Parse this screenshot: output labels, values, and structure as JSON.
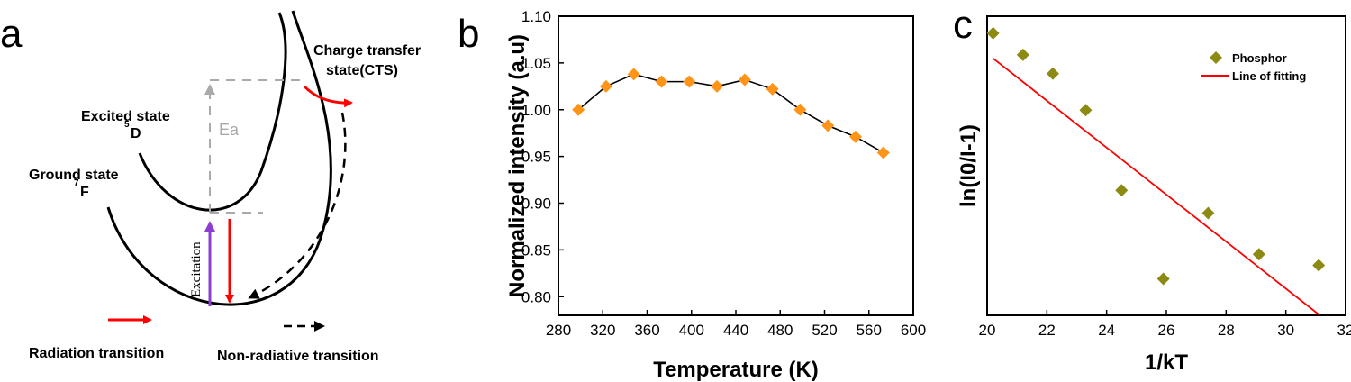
{
  "panel_labels": [
    "a",
    "b",
    "c"
  ],
  "diagram": {
    "excited_state": "Excited state",
    "excited_term": "D",
    "excited_sup": "5",
    "ground_state": "Ground state",
    "ground_term": "F",
    "ground_sup": "7",
    "cts": [
      "Charge transfer",
      "state(CTS)"
    ],
    "ea": "Ea",
    "excitation": "Excitation",
    "legend_radiation": "Radiation transition",
    "legend_nonrad": "Non-radiative transition",
    "colors": {
      "radiation": "#ff0000",
      "excitation": "#8a3fd0",
      "guide": "#aaaaaa"
    }
  },
  "chart_data": [
    {
      "type": "line",
      "marker": "diamond",
      "color": "#ff9418",
      "xlabel": "Temperature (K)",
      "ylabel": "Normalized intensity (a.u)",
      "xlim": [
        280,
        600
      ],
      "ylim": [
        0.78,
        1.1
      ],
      "xticks": [
        280,
        320,
        360,
        400,
        440,
        480,
        520,
        560,
        600
      ],
      "yticks": [
        0.8,
        0.85,
        0.9,
        0.95,
        1.0,
        1.05,
        1.1
      ],
      "ytick_labels": [
        "0.80",
        "0.85",
        "0.90",
        "0.95",
        "1.00",
        "1.05",
        "1.10"
      ],
      "x": [
        298,
        323,
        348,
        373,
        398,
        423,
        448,
        473,
        498,
        523,
        548,
        573
      ],
      "y": [
        1.0,
        1.025,
        1.038,
        1.03,
        1.03,
        1.025,
        1.032,
        1.022,
        1.0,
        0.983,
        0.971,
        0.954
      ]
    },
    {
      "type": "scatter",
      "xlabel": "1/kT",
      "ylabel": "ln(I0/I-1)",
      "xlim": [
        20,
        32
      ],
      "xticks": [
        20,
        22,
        24,
        26,
        28,
        30,
        32
      ],
      "ylim": [
        0,
        1
      ],
      "y_tick_labels_shown": false,
      "legend_position": "top-right",
      "series": [
        {
          "name": "Phosphor",
          "marker": "diamond",
          "color": "#8c8a13",
          "x": [
            20.2,
            21.2,
            22.2,
            23.3,
            24.5,
            25.9,
            27.4,
            29.1,
            31.1
          ],
          "y": [
            0.943,
            0.871,
            0.808,
            0.686,
            0.418,
            0.122,
            0.342,
            0.204,
            0.167
          ]
        },
        {
          "name": "Line of fitting",
          "type": "line",
          "color": "#ff0000",
          "x": [
            20.2,
            31.1
          ],
          "y": [
            0.859,
            0.003
          ]
        }
      ]
    }
  ]
}
